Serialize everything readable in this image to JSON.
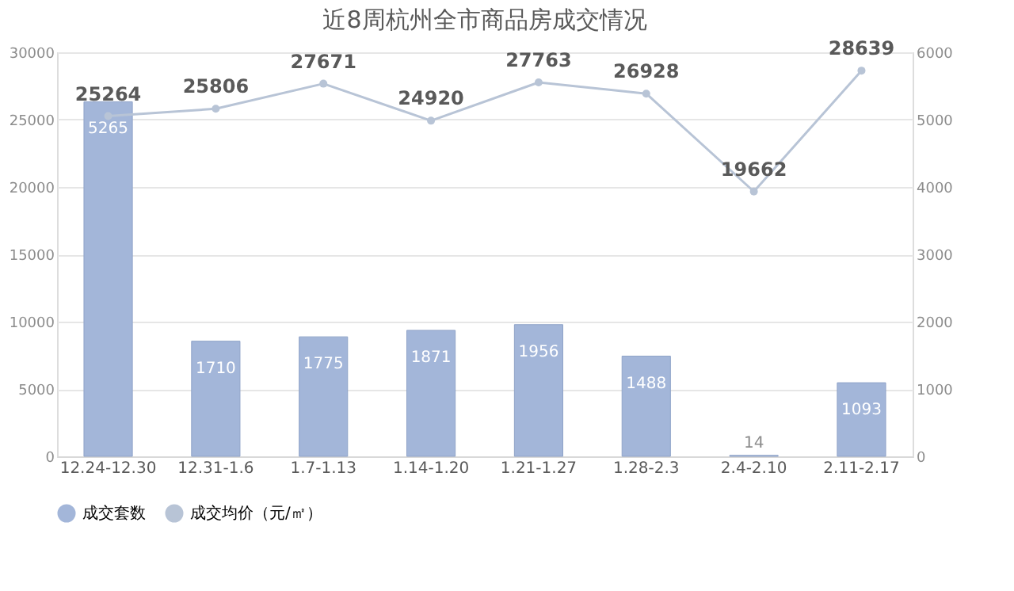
{
  "chart_data": {
    "type": "bar",
    "title": "近8周杭州全市商品房成交情况",
    "categories": [
      "12.24-12.30",
      "12.31-1.6",
      "1.7-1.13",
      "1.14-1.20",
      "1.21-1.27",
      "1.28-2.3",
      "2.4-2.10",
      "2.11-2.17"
    ],
    "series": [
      {
        "name": "成交套数",
        "axis": "y2",
        "color": "#a3b6d9",
        "values": [
          5265,
          1710,
          1775,
          1871,
          1956,
          1488,
          14,
          1093
        ]
      },
      {
        "name": "成交均价（元/㎡）",
        "type": "line",
        "axis": "y",
        "color": "#b8c4d6",
        "marker": "circle",
        "values": [
          25264,
          25806,
          27671,
          24920,
          27763,
          26928,
          19662,
          28639
        ]
      }
    ],
    "ylim": [
      0,
      30000
    ],
    "yticks": [
      0,
      5000,
      10000,
      15000,
      20000,
      25000,
      30000
    ],
    "y2lim": [
      0,
      6000
    ],
    "y2ticks": [
      0,
      1000,
      2000,
      3000,
      4000,
      5000,
      6000
    ],
    "data_labels": true,
    "grid": "y",
    "legend": "bottom"
  }
}
